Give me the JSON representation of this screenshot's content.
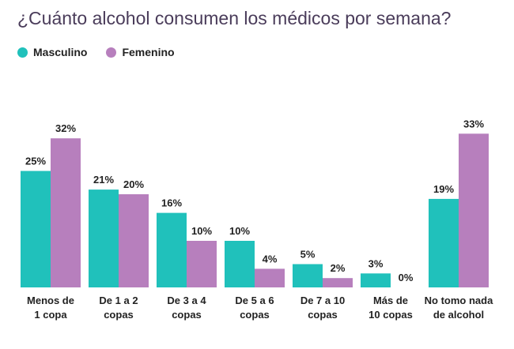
{
  "title": "¿Cuánto alcohol consumen los médicos por semana?",
  "legend": [
    {
      "label": "Masculino",
      "color": "#20c1bb"
    },
    {
      "label": "Femenino",
      "color": "#b77fbd"
    }
  ],
  "chart_data": {
    "type": "bar",
    "title": "¿Cuánto alcohol consumen los médicos por semana?",
    "xlabel": "",
    "ylabel": "",
    "ylim": [
      0,
      35
    ],
    "grid": false,
    "legend_position": "top-left",
    "categories": [
      [
        "Menos de",
        "1 copa"
      ],
      [
        "De 1 a 2",
        "copas"
      ],
      [
        "De 3 a 4",
        "copas"
      ],
      [
        "De 5 a 6",
        "copas"
      ],
      [
        "De 7 a 10",
        "copas"
      ],
      [
        "Más de",
        "10 copas"
      ],
      [
        "No tomo nada",
        "de alcohol"
      ]
    ],
    "series": [
      {
        "name": "Masculino",
        "color": "#20c1bb",
        "values": [
          25,
          21,
          16,
          10,
          5,
          3,
          19
        ]
      },
      {
        "name": "Femenino",
        "color": "#b77fbd",
        "values": [
          32,
          20,
          10,
          4,
          2,
          0,
          33
        ]
      }
    ],
    "value_suffix": "%"
  }
}
